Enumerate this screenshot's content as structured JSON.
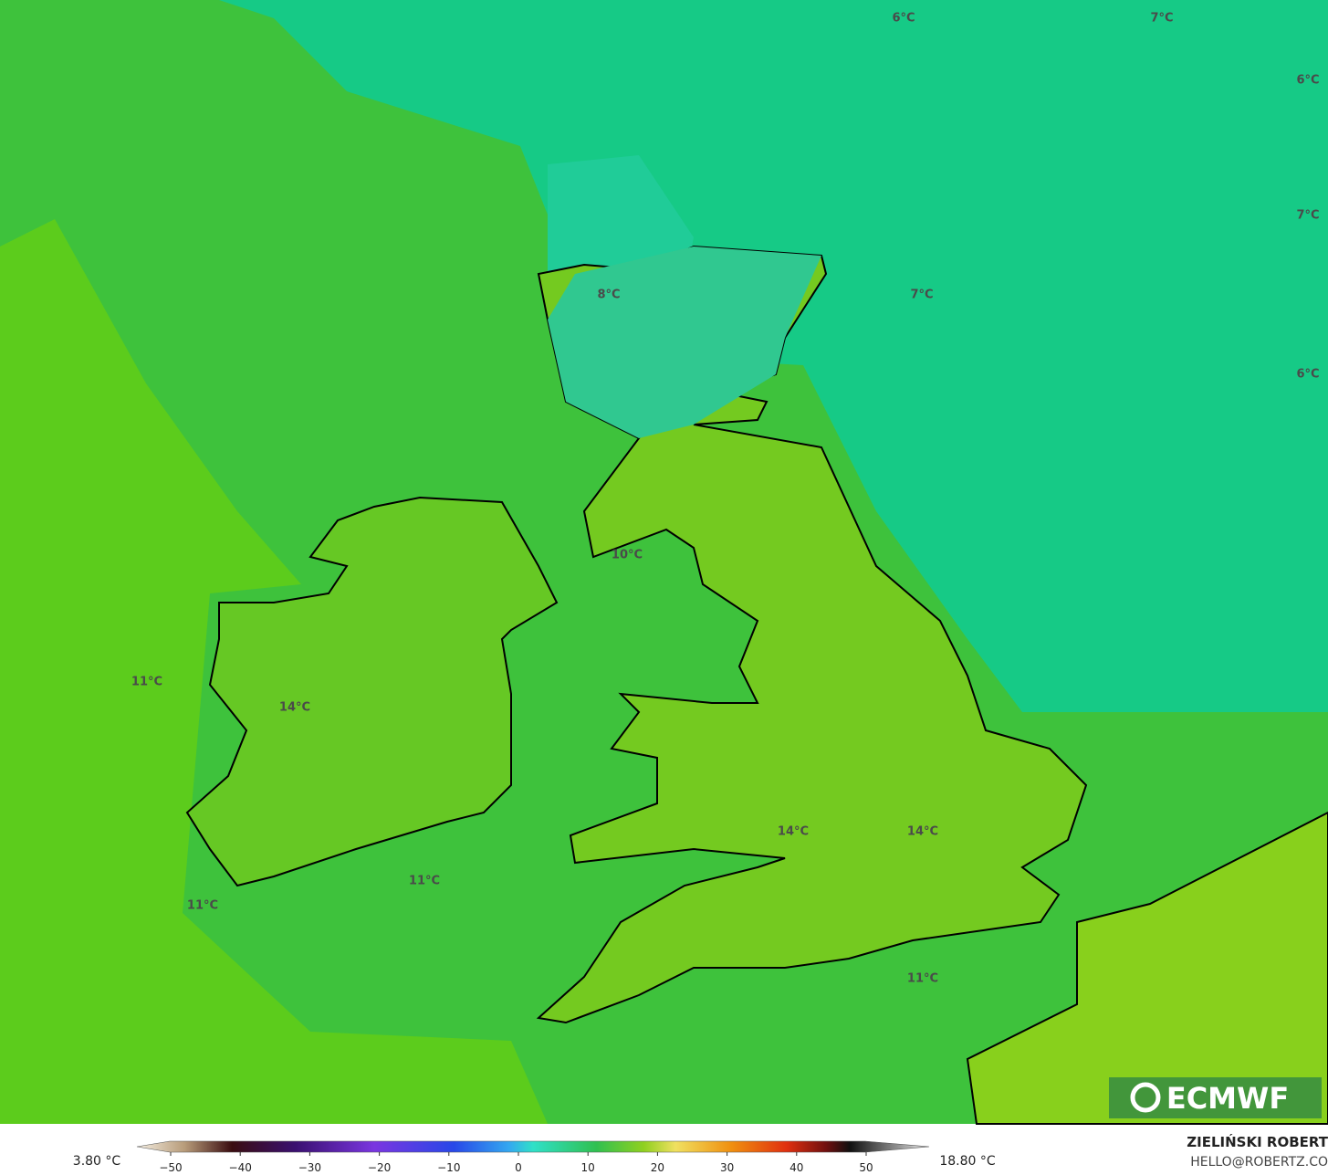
{
  "map": {
    "labels": [
      "6°C",
      "7°C",
      "6°C",
      "7°C",
      "8°C",
      "7°C",
      "6°C",
      "10°C",
      "11°C",
      "14°C",
      "14°C",
      "14°C",
      "11°C",
      "11°C",
      "11°C"
    ]
  },
  "colorbar": {
    "min_label": "3.80 °C",
    "max_label": "18.80 °C",
    "ticks": [
      {
        "value": -50,
        "label": "−50"
      },
      {
        "value": -40,
        "label": "−40"
      },
      {
        "value": -30,
        "label": "−30"
      },
      {
        "value": -20,
        "label": "−20"
      },
      {
        "value": -10,
        "label": "−10"
      },
      0,
      10,
      20,
      30,
      40,
      50
    ]
  },
  "logo": "ECMWF",
  "credit": {
    "name": "ZIELIŃSKI ROBERT",
    "email": "HELLO@ROBERTZ.CO"
  }
}
